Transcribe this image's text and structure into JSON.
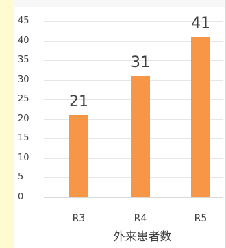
{
  "chart_data": {
    "type": "bar",
    "categories": [
      "R3",
      "R4",
      "R5"
    ],
    "values": [
      21,
      31,
      41
    ],
    "data_labels": [
      "21",
      "31",
      "41"
    ],
    "title": "",
    "xlabel": "外来患者数",
    "ylabel": "",
    "ylim": [
      0,
      45
    ],
    "yticks": [
      0,
      5,
      10,
      15,
      20,
      25,
      30,
      35,
      40,
      45
    ],
    "ytick_labels": [
      "0",
      "5",
      "10",
      "15",
      "20",
      "25",
      "30",
      "35",
      "40",
      "45"
    ],
    "grid": true,
    "legend": "none",
    "colors": {
      "bar": "#f79646",
      "text": "#404040",
      "grid": "#e6e6e6",
      "left_band": "#fffbd0"
    }
  }
}
